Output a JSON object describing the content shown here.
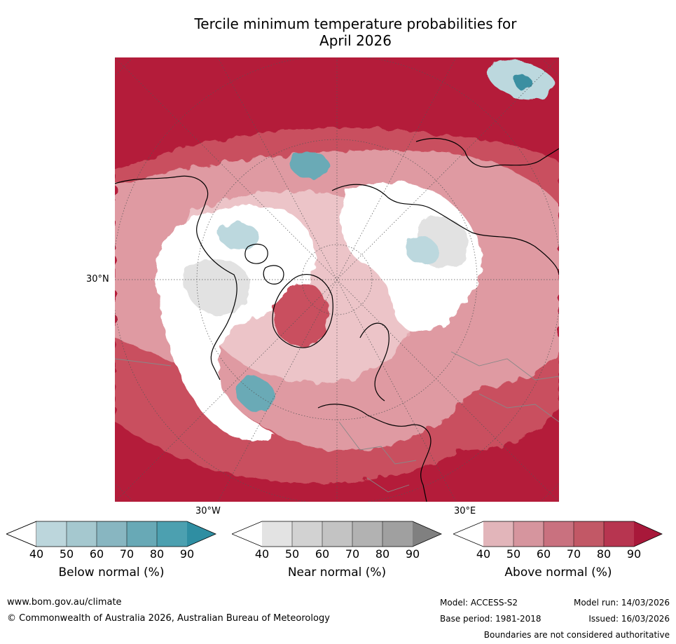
{
  "title_line1": "Tercile minimum temperature probabilities for",
  "title_line2": "April 2026",
  "map": {
    "lat_label": "30°N",
    "lon_label_west": "30°W",
    "lon_label_east": "30°E",
    "colors": {
      "strong_red": "#b41c3a",
      "mid_red": "#c9505f",
      "light_red": "#df9aa2",
      "pale_red": "#ecc4c8",
      "white": "#ffffff",
      "light_grey": "#e2e2e2",
      "pale_blue": "#bcd8de",
      "mid_blue": "#6aaab6",
      "dark_blue": "#3a8fa1"
    }
  },
  "colorbars": [
    {
      "label": "Below normal (%)",
      "ticks": [
        "40",
        "50",
        "60",
        "70",
        "80",
        "90"
      ],
      "colors": [
        "#ffffff",
        "#bcd6dc",
        "#a5c8cf",
        "#88b6c1",
        "#68a9b6",
        "#4ca0b0",
        "#2f8ea2"
      ]
    },
    {
      "label": "Near normal (%)",
      "ticks": [
        "40",
        "50",
        "60",
        "70",
        "80",
        "90"
      ],
      "colors": [
        "#ffffff",
        "#e3e3e3",
        "#d2d2d2",
        "#c3c3c3",
        "#b2b2b2",
        "#a0a0a0",
        "#808080"
      ]
    },
    {
      "label": "Above normal (%)",
      "ticks": [
        "40",
        "50",
        "60",
        "70",
        "80",
        "90"
      ],
      "colors": [
        "#ffffff",
        "#e2b5ba",
        "#d6959e",
        "#c9717f",
        "#c25866",
        "#b73550",
        "#a8183a"
      ]
    }
  ],
  "footer": {
    "website": "www.bom.gov.au/climate",
    "copyright": "© Commonwealth of Australia 2026, Australian Bureau of Meteorology",
    "model": "Model: ACCESS-S2",
    "base_period": "Base period: 1981-2018",
    "model_run": "Model run: 14/03/2026",
    "issued": "Issued: 16/03/2026",
    "disclaimer": "Boundaries are not considered authoritative"
  }
}
